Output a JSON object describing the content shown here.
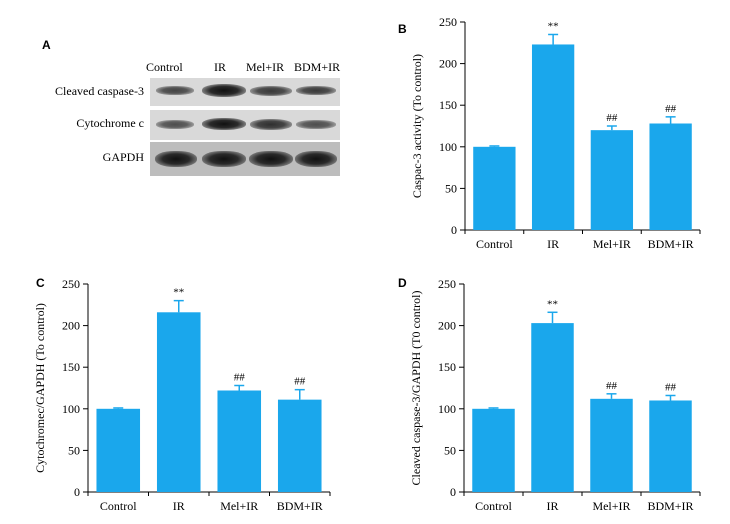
{
  "blot": {
    "panel_label": "A",
    "lanes": [
      "Control",
      "IR",
      "Mel+IR",
      "BDM+IR"
    ],
    "rows": [
      "Cleaved caspase-3",
      "Cytochrome c",
      "GAPDH"
    ]
  },
  "chart_data": [
    {
      "panel_label": "B",
      "type": "bar",
      "categories": [
        "Control",
        "IR",
        "Mel+IR",
        "BDM+IR"
      ],
      "values": [
        100,
        223,
        120,
        128
      ],
      "errors": [
        1,
        12,
        5,
        8
      ],
      "annotations": [
        "",
        "**",
        "##",
        "##"
      ],
      "ylabel": "Caspac-3 activity (To control)",
      "ylim": [
        0,
        250
      ],
      "yticks": [
        0,
        50,
        100,
        150,
        200,
        250
      ],
      "bar_color": "#1aa7ec",
      "grid": false
    },
    {
      "panel_label": "C",
      "type": "bar",
      "categories": [
        "Control",
        "IR",
        "Mel+IR",
        "BDM+IR"
      ],
      "values": [
        100,
        216,
        122,
        111
      ],
      "errors": [
        1,
        14,
        6,
        12
      ],
      "annotations": [
        "",
        "**",
        "##",
        "##"
      ],
      "ylabel": "Cytochromec/GAPDH (To control)",
      "ylim": [
        0,
        250
      ],
      "yticks": [
        0,
        50,
        100,
        150,
        200,
        250
      ],
      "bar_color": "#1aa7ec",
      "grid": false
    },
    {
      "panel_label": "D",
      "type": "bar",
      "categories": [
        "Control",
        "IR",
        "Mel+IR",
        "BDM+IR"
      ],
      "values": [
        100,
        203,
        112,
        110
      ],
      "errors": [
        1,
        13,
        6,
        6
      ],
      "annotations": [
        "",
        "**",
        "##",
        "##"
      ],
      "ylabel": "Cleaved caspase-3/GAPDH (T0 control)",
      "ylim": [
        0,
        250
      ],
      "yticks": [
        0,
        50,
        100,
        150,
        200,
        250
      ],
      "bar_color": "#1aa7ec",
      "grid": false
    }
  ]
}
